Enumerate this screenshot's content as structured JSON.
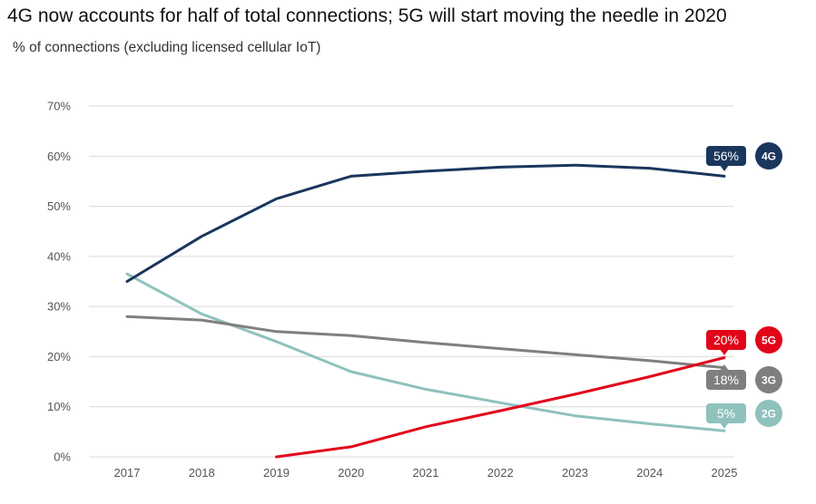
{
  "chart_data": {
    "type": "line",
    "title": "4G now accounts for half of total connections; 5G will start moving the needle in 2020",
    "subtitle": "% of connections (excluding licensed cellular IoT)",
    "x": [
      "2017",
      "2018",
      "2019",
      "2020",
      "2021",
      "2022",
      "2023",
      "2024",
      "2025"
    ],
    "y_ticks": [
      "0%",
      "10%",
      "20%",
      "30%",
      "40%",
      "50%",
      "60%",
      "70%"
    ],
    "ylim": [
      0,
      70
    ],
    "grid": true,
    "series": [
      {
        "name": "4G",
        "color": "#1b365d",
        "values": [
          35,
          44,
          51.5,
          56,
          57,
          57.8,
          58.2,
          57.6,
          56
        ],
        "end_label": "56%"
      },
      {
        "name": "2G",
        "color": "#8fc1bd",
        "values": [
          36.5,
          28.5,
          23,
          17,
          13.5,
          10.8,
          8.2,
          6.6,
          5.2
        ],
        "end_label": "5%"
      },
      {
        "name": "3G",
        "color": "#7f7f7f",
        "values": [
          28,
          27.3,
          25,
          24.2,
          22.8,
          21.6,
          20.4,
          19.2,
          17.8
        ],
        "end_label": "18%"
      },
      {
        "name": "5G",
        "color": "#e2051a",
        "values": [
          null,
          null,
          0,
          2,
          6,
          9.2,
          12.5,
          16,
          19.8
        ],
        "end_label": "20%"
      }
    ]
  }
}
